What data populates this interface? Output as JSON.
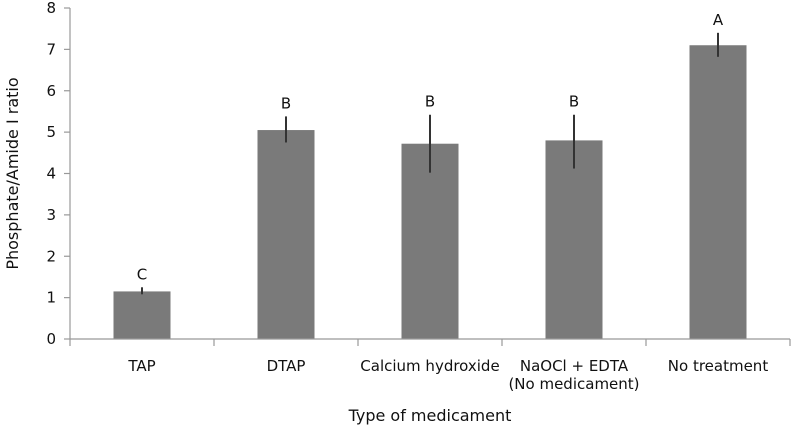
{
  "chart_data": {
    "type": "bar",
    "xlabel": "Type of medicament",
    "ylabel": "Phosphate/Amide I ratio",
    "ylim": [
      0,
      8
    ],
    "yticks": [
      "0",
      "1",
      "2",
      "3",
      "4",
      "5",
      "6",
      "7",
      "8"
    ],
    "grid": false,
    "bar_color": "#7a7a7a",
    "categories": [
      {
        "label": [
          "TAP"
        ],
        "value": 1.15,
        "err_low": 1.08,
        "err_high": 1.25,
        "letter": "C"
      },
      {
        "label": [
          "DTAP"
        ],
        "value": 5.05,
        "err_low": 4.75,
        "err_high": 5.38,
        "letter": "B"
      },
      {
        "label": [
          "Calcium hydroxide"
        ],
        "value": 4.72,
        "err_low": 4.02,
        "err_high": 5.42,
        "letter": "B"
      },
      {
        "label": [
          "NaOCl + EDTA",
          "(No medicament)"
        ],
        "value": 4.8,
        "err_low": 4.12,
        "err_high": 5.42,
        "letter": "B"
      },
      {
        "label": [
          "No treatment"
        ],
        "value": 7.1,
        "err_low": 6.82,
        "err_high": 7.4,
        "letter": "A"
      }
    ]
  }
}
